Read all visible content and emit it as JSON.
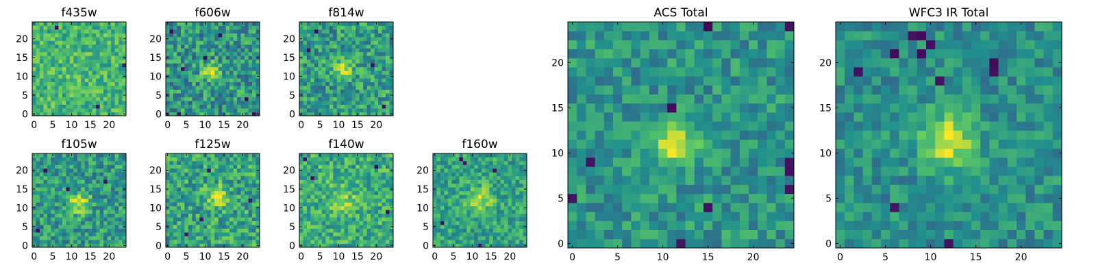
{
  "figure": {
    "type": "heatmap",
    "colormap": "viridis",
    "colormap_stops": [
      "#440154",
      "#3b528b",
      "#21908d",
      "#5dc963",
      "#fde725"
    ],
    "grid": false
  },
  "chart_data": [
    {
      "type": "heatmap",
      "title": "f435w",
      "grid_size": [
        25,
        25
      ],
      "xlim": [
        -0.5,
        24.5
      ],
      "ylim": [
        -0.5,
        24.5
      ],
      "xticks": [
        "0",
        "5",
        "10",
        "15",
        "20"
      ],
      "yticks": [
        "0",
        "5",
        "10",
        "15",
        "20"
      ],
      "background_level": 0.66,
      "noise_level": 0.11,
      "source": {
        "x": 11,
        "y": 11,
        "amplitude": 0.1,
        "sigma": 2.0
      },
      "dark_pixels": [
        [
          6,
          23
        ],
        [
          24,
          13
        ],
        [
          17,
          2
        ]
      ]
    },
    {
      "type": "heatmap",
      "title": "f606w",
      "grid_size": [
        25,
        25
      ],
      "xlim": [
        -0.5,
        24.5
      ],
      "ylim": [
        -0.5,
        24.5
      ],
      "xticks": [
        "0",
        "5",
        "10",
        "15",
        "20"
      ],
      "yticks": [
        "0",
        "5",
        "10",
        "15",
        "20"
      ],
      "background_level": 0.52,
      "noise_level": 0.15,
      "source": {
        "x": 11.5,
        "y": 11.5,
        "amplitude": 0.45,
        "sigma": 1.4
      },
      "dark_pixels": [
        [
          4,
          12
        ],
        [
          10,
          15
        ],
        [
          21,
          4
        ],
        [
          14,
          21
        ],
        [
          3,
          0
        ],
        [
          1,
          22
        ],
        [
          23,
          0
        ]
      ]
    },
    {
      "type": "heatmap",
      "title": "f814w",
      "grid_size": [
        25,
        25
      ],
      "xlim": [
        -0.5,
        24.5
      ],
      "ylim": [
        -0.5,
        24.5
      ],
      "xticks": [
        "0",
        "5",
        "10",
        "15",
        "20"
      ],
      "yticks": [
        "0",
        "5",
        "10",
        "15",
        "20"
      ],
      "background_level": 0.55,
      "noise_level": 0.14,
      "source": {
        "x": 11.5,
        "y": 11.5,
        "amplitude": 0.42,
        "sigma": 1.5
      },
      "dark_pixels": [
        [
          2,
          17
        ],
        [
          19,
          13
        ],
        [
          4,
          22
        ],
        [
          22,
          2
        ]
      ]
    },
    {
      "type": "heatmap",
      "title": "f105w",
      "grid_size": [
        25,
        25
      ],
      "xlim": [
        -0.5,
        24.5
      ],
      "ylim": [
        -0.5,
        24.5
      ],
      "xticks": [
        "0",
        "5",
        "10",
        "15",
        "20"
      ],
      "yticks": [
        "0",
        "5",
        "10",
        "15",
        "20"
      ],
      "background_level": 0.54,
      "noise_level": 0.13,
      "source": {
        "x": 12,
        "y": 11,
        "amplitude": 0.4,
        "sigma": 2.0
      },
      "dark_pixels": [
        [
          3,
          20
        ],
        [
          9,
          15
        ],
        [
          19,
          17
        ],
        [
          1,
          4
        ]
      ]
    },
    {
      "type": "heatmap",
      "title": "f125w",
      "grid_size": [
        25,
        25
      ],
      "xlim": [
        -0.5,
        24.5
      ],
      "ylim": [
        -0.5,
        24.5
      ],
      "xticks": [
        "0",
        "5",
        "10",
        "15",
        "20"
      ],
      "yticks": [
        "0",
        "5",
        "10",
        "15",
        "20"
      ],
      "background_level": 0.58,
      "noise_level": 0.14,
      "source": {
        "x": 13,
        "y": 13,
        "amplitude": 0.35,
        "sigma": 2.2
      },
      "dark_pixels": [
        [
          11,
          20
        ],
        [
          22,
          12
        ],
        [
          9,
          7
        ],
        [
          5,
          3
        ]
      ]
    },
    {
      "type": "heatmap",
      "title": "f140w",
      "grid_size": [
        25,
        25
      ],
      "xlim": [
        -0.5,
        24.5
      ],
      "ylim": [
        -0.5,
        24.5
      ],
      "xticks": [
        "0",
        "5",
        "10",
        "15",
        "20"
      ],
      "yticks": [
        "0",
        "5",
        "10",
        "15",
        "20"
      ],
      "background_level": 0.62,
      "noise_level": 0.12,
      "source": {
        "x": 11,
        "y": 12,
        "amplitude": 0.2,
        "sigma": 2.5
      },
      "dark_pixels": [
        [
          20,
          21
        ],
        [
          3,
          18
        ],
        [
          23,
          9
        ],
        [
          1,
          23
        ]
      ]
    },
    {
      "type": "heatmap",
      "title": "f160w",
      "grid_size": [
        25,
        25
      ],
      "xlim": [
        -0.5,
        24.5
      ],
      "ylim": [
        -0.5,
        24.5
      ],
      "xticks": [
        "0",
        "5",
        "10",
        "15",
        "20"
      ],
      "yticks": [
        "0",
        "5",
        "10",
        "15",
        "20"
      ],
      "background_level": 0.58,
      "noise_level": 0.11,
      "source": {
        "x": 12,
        "y": 12,
        "amplitude": 0.3,
        "sigma": 2.4
      },
      "dark_pixels": [
        [
          7,
          23
        ],
        [
          8,
          22
        ],
        [
          2,
          6
        ],
        [
          12,
          0
        ],
        [
          16,
          20
        ]
      ]
    },
    {
      "type": "heatmap",
      "title": "ACS Total",
      "grid_size": [
        25,
        25
      ],
      "xlim": [
        -0.5,
        24.5
      ],
      "ylim": [
        -0.5,
        24.5
      ],
      "xticks": [
        "0",
        "5",
        "10",
        "15",
        "20"
      ],
      "yticks": [
        "0",
        "5",
        "10",
        "15",
        "20"
      ],
      "background_level": 0.52,
      "noise_level": 0.1,
      "source": {
        "x": 11.5,
        "y": 11,
        "amplitude": 0.5,
        "sigma": 1.6
      },
      "dark_pixels": [
        [
          15,
          4
        ],
        [
          2,
          9
        ],
        [
          24,
          8
        ],
        [
          24,
          9
        ],
        [
          24,
          6
        ],
        [
          11,
          15
        ],
        [
          24,
          24
        ],
        [
          15,
          24
        ],
        [
          12,
          0
        ],
        [
          0,
          5
        ]
      ]
    },
    {
      "type": "heatmap",
      "title": "WFC3 IR Total",
      "grid_size": [
        25,
        25
      ],
      "xlim": [
        -0.5,
        24.5
      ],
      "ylim": [
        -0.5,
        24.5
      ],
      "xticks": [
        "0",
        "5",
        "10",
        "15",
        "20"
      ],
      "yticks": [
        "0",
        "5",
        "10",
        "15",
        "20"
      ],
      "background_level": 0.5,
      "noise_level": 0.09,
      "source": {
        "x": 12,
        "y": 11.5,
        "amplitude": 0.5,
        "sigma": 2.0
      },
      "dark_pixels": [
        [
          8,
          23
        ],
        [
          9,
          23
        ],
        [
          10,
          22
        ],
        [
          6,
          21
        ],
        [
          9,
          21
        ],
        [
          2,
          19
        ],
        [
          17,
          20
        ],
        [
          11,
          18
        ],
        [
          6,
          4
        ],
        [
          12,
          0
        ],
        [
          17,
          19
        ]
      ]
    }
  ]
}
